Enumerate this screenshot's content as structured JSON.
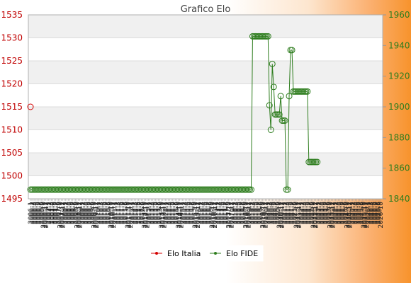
{
  "chart_data": {
    "type": "line",
    "title": "Grafico Elo",
    "y_left": {
      "ylim": [
        1495,
        1535
      ],
      "ticks": [
        1495,
        1500,
        1505,
        1510,
        1515,
        1520,
        1525,
        1530,
        1535
      ],
      "color": "#d40000"
    },
    "y_right": {
      "ylim": [
        1840,
        1960
      ],
      "ticks": [
        1840,
        1860,
        1880,
        1900,
        1920,
        1940,
        1960
      ],
      "color": "#2e8b1e"
    },
    "legend_position": "bottom-center",
    "grid": true,
    "x_tick_labels": [
      "2006-1",
      "2006-2",
      "2006-3",
      "2006-4",
      "2006-5",
      "2006-6",
      "2006-7",
      "2006-8",
      "2006-9",
      "2006-10",
      "2006-11",
      "2006-12",
      "2007-1",
      "2007-2",
      "2007-3",
      "2007-4",
      "2007-5",
      "2007-6",
      "2007-7",
      "2007-8",
      "2007-9",
      "2007-10",
      "2007-11",
      "2007-12",
      "2008-1",
      "2008-2",
      "2008-3",
      "2008-4",
      "2008-5",
      "2008-6",
      "2008-7",
      "2008-8",
      "2008-9",
      "2008-10",
      "2008-11",
      "2008-12",
      "2009-1",
      "2009-2",
      "2009-3",
      "2009-4",
      "2009-5",
      "2009-6",
      "2009-7",
      "2009-8",
      "2009-9",
      "2009-10",
      "2009-11",
      "2009-12",
      "2010-1",
      "2010-2",
      "2010-3",
      "2010-4",
      "2010-5",
      "2010-6",
      "2010-7",
      "2010-8",
      "2010-9",
      "2010-10",
      "2010-11",
      "2010-12",
      "2011-1",
      "2011-2",
      "2011-3",
      "2011-4",
      "2011-5",
      "2011-6",
      "2011-7",
      "2011-8",
      "2011-9",
      "2011-10",
      "2011-11",
      "2011-12",
      "2012-1",
      "2012-2",
      "2012-3",
      "2012-4",
      "2012-5",
      "2012-6",
      "2012-7",
      "2012-8",
      "2012-9",
      "2012-10",
      "2012-11",
      "2012-12",
      "2013-1",
      "2013-2",
      "2013-3",
      "2013-4",
      "2013-5",
      "2013-6",
      "2013-7",
      "2013-8",
      "2013-9",
      "2013-10",
      "2013-11",
      "2013-12",
      "2014-1",
      "2014-2",
      "2014-3",
      "2014-4",
      "2014-5",
      "2014-6",
      "2014-7",
      "2014-8",
      "2014-9",
      "2014-10",
      "2014-11",
      "2014-12",
      "2015-1",
      "2015-2",
      "2015-3",
      "2015-4",
      "2015-5",
      "2015-6",
      "2015-7",
      "2015-8",
      "2015-9",
      "2015-10",
      "2015-11",
      "2015-12",
      "2016-1",
      "2016-2",
      "2016-3",
      "2016-4",
      "2016-5",
      "2016-6",
      "2016-7",
      "2016-8",
      "2016-9",
      "2016-10",
      "2016-11",
      "2016-12",
      "2017-1",
      "2017-2",
      "2017-3",
      "2017-4",
      "2017-5",
      "2017-6",
      "2017-7",
      "2017-8",
      "2017-9",
      "2017-10",
      "2017-11",
      "2017-12",
      "2018-1",
      "2018-2",
      "2018-3",
      "2018-4",
      "2018-5",
      "2018-6",
      "2018-7",
      "2018-8",
      "2018-9",
      "2018-10",
      "2018-11",
      "2018-12",
      "2019-1",
      "2019-2",
      "2019-3",
      "2019-4",
      "2019-5",
      "2019-6",
      "2019-7",
      "2019-8",
      "2019-9",
      "2019-10",
      "2019-11",
      "2019-12",
      "2020-1",
      "2020-2",
      "2020-3",
      "2020-4",
      "2020-5",
      "2020-6",
      "2020-7",
      "2020-8",
      "2020-9",
      "2020-10",
      "2020-11",
      "2020-12",
      "2021-1",
      "2021-2",
      "2021-3",
      "2021-4",
      "2021-5",
      "2021-6",
      "2021-7",
      "2021-8",
      "2021-9",
      "2021-10",
      "2021-11",
      "2021-12",
      "2022-1",
      "2022-2",
      "2022-3",
      "2022-4",
      "2022-5",
      "2022-6",
      "2022-7",
      "2022-8",
      "2022-9",
      "2022-10",
      "2022-11",
      "2022-12",
      "2023-1",
      "2023-2",
      "2023-3",
      "2023-4",
      "2023-5",
      "2023-6",
      "2023-7",
      "2023-8",
      "2023-9",
      "2023-10",
      "2023-11",
      "2023-12",
      "2024-1",
      "2024-2",
      "2024-3",
      "2024-4",
      "2024-5",
      "2024-6",
      "2024-7",
      "2024-8",
      "2024-9",
      "2024-10",
      "2024-11",
      "2024-12",
      "2025-1",
      "2025-2",
      "2025-3",
      "2025-4",
      "2025-5",
      "2025-6",
      "2025-7",
      "2025-8",
      "2025-9",
      "2025-10",
      "2025-11",
      "2025-12",
      "2026-1",
      "2026-2",
      "2026-3",
      "2026-4",
      "2026-5",
      "2026-6",
      "2026-7",
      "2026-8",
      "2026-9",
      "2026-10"
    ],
    "series": [
      {
        "name": "Elo Italia",
        "axis": "left",
        "color": "#d40000",
        "points": [
          [
            0,
            1515
          ]
        ]
      },
      {
        "name": "Elo FIDE",
        "axis": "right",
        "color": "#2e7d1e",
        "values": [
          1846,
          1846,
          1846,
          1846,
          1846,
          1846,
          1846,
          1846,
          1846,
          1846,
          1846,
          1846,
          1846,
          1846,
          1846,
          1846,
          1846,
          1846,
          1846,
          1846,
          1846,
          1846,
          1846,
          1846,
          1846,
          1846,
          1846,
          1846,
          1846,
          1846,
          1846,
          1846,
          1846,
          1846,
          1846,
          1846,
          1846,
          1846,
          1846,
          1846,
          1846,
          1846,
          1846,
          1846,
          1846,
          1846,
          1846,
          1846,
          1846,
          1846,
          1846,
          1846,
          1846,
          1846,
          1846,
          1846,
          1846,
          1846,
          1846,
          1846,
          1846,
          1846,
          1846,
          1846,
          1846,
          1846,
          1846,
          1846,
          1846,
          1846,
          1846,
          1846,
          1846,
          1846,
          1846,
          1846,
          1846,
          1846,
          1846,
          1846,
          1846,
          1846,
          1846,
          1846,
          1846,
          1846,
          1846,
          1846,
          1846,
          1846,
          1846,
          1846,
          1846,
          1846,
          1846,
          1846,
          1846,
          1846,
          1846,
          1846,
          1846,
          1846,
          1846,
          1846,
          1846,
          1846,
          1846,
          1846,
          1846,
          1846,
          1846,
          1846,
          1846,
          1846,
          1846,
          1846,
          1846,
          1846,
          1846,
          1846,
          1846,
          1846,
          1846,
          1846,
          1846,
          1846,
          1846,
          1846,
          1846,
          1846,
          1846,
          1846,
          1846,
          1846,
          1846,
          1846,
          1846,
          1846,
          1846,
          1846,
          1846,
          1846,
          1846,
          1846,
          1846,
          1846,
          1846,
          1846,
          1846,
          1846,
          1846,
          1846,
          1846,
          1846,
          1846,
          1846,
          1846,
          1846,
          1946,
          1946,
          1946,
          1946,
          1946,
          1946,
          1946,
          1946,
          1946,
          1946,
          1946,
          1946,
          1901,
          1885,
          1928,
          1913,
          1895,
          1895,
          1895,
          1895,
          1907,
          1891,
          1891,
          1891,
          1846,
          1846,
          1907,
          1937,
          1937,
          1910,
          1910,
          1910,
          1910,
          1910,
          1910,
          1910,
          1910,
          1910,
          1910,
          1910,
          1864,
          1864,
          1864,
          1864,
          1864,
          1864,
          1864
        ]
      },
      {
        "name": "",
        "axis": "right",
        "hidden": true,
        "values": []
      }
    ]
  }
}
